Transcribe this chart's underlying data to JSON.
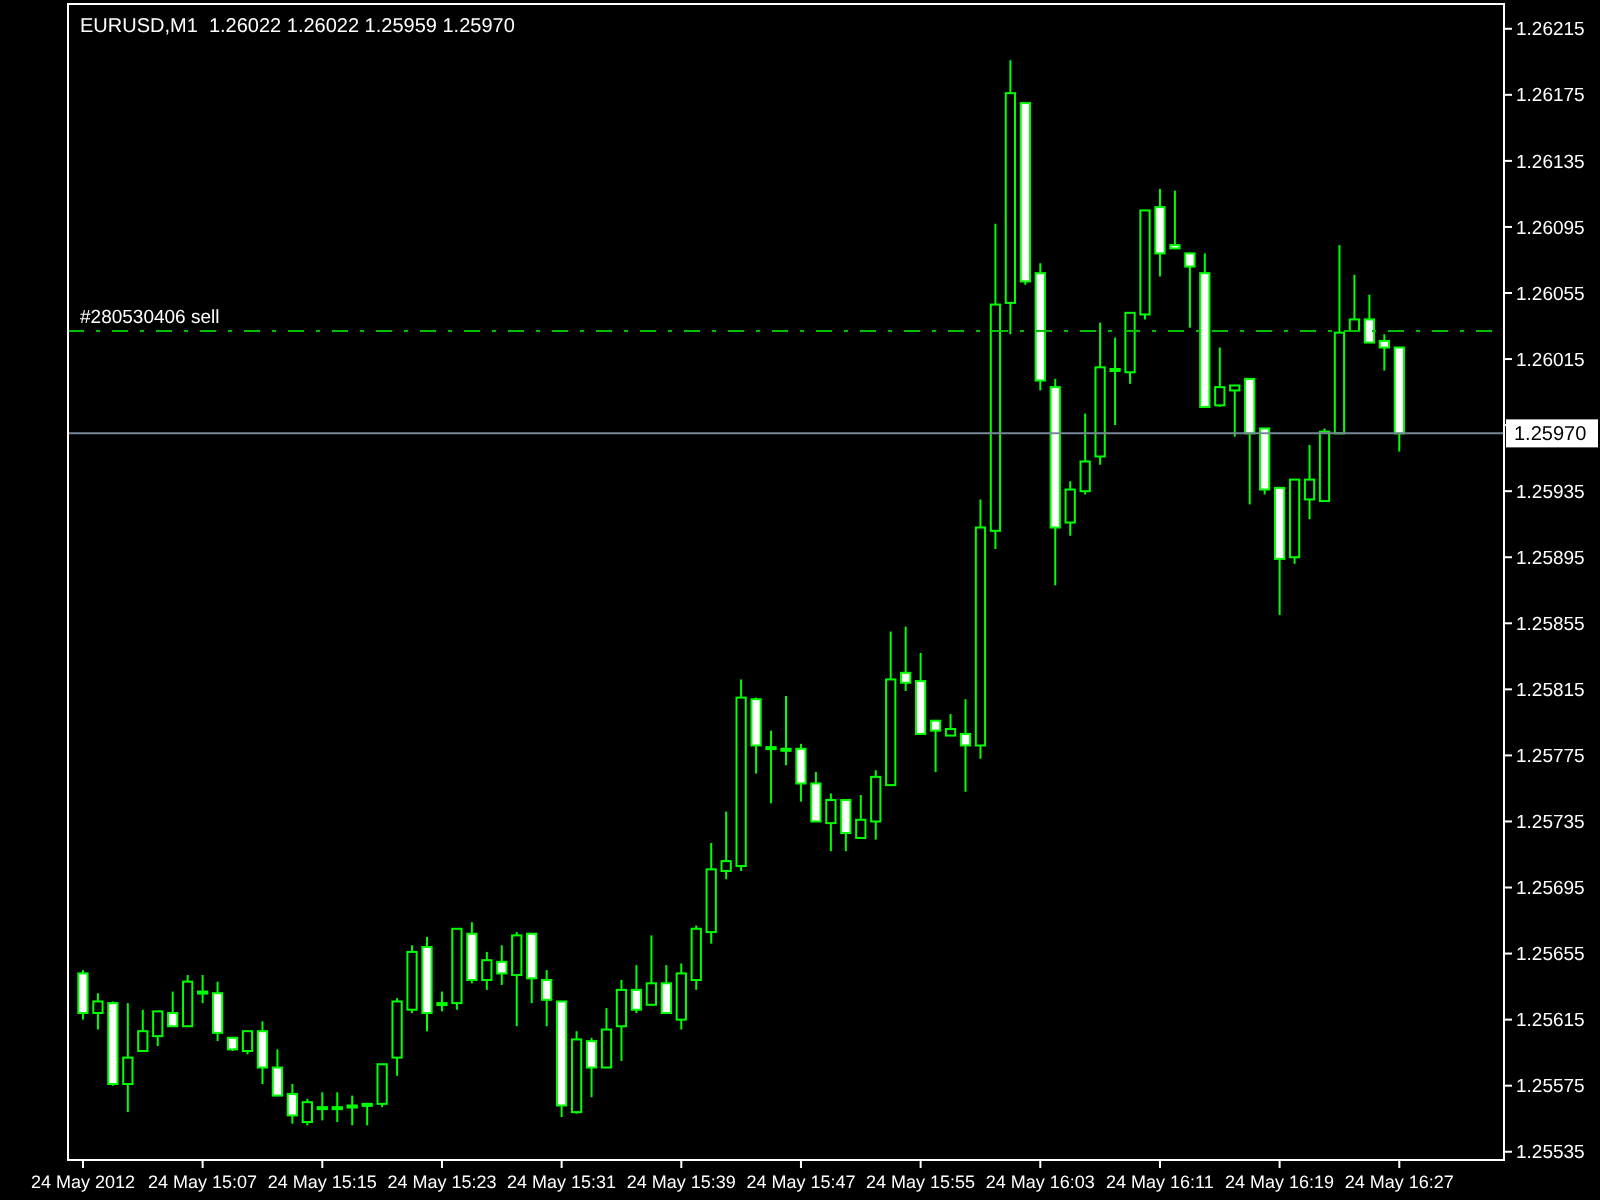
{
  "chart_data": {
    "type": "candlestick",
    "title": "EURUSD,M1  1.26022 1.26022 1.25959 1.25970",
    "color": "#00ff00",
    "x": [
      "2012-05-24T14:59",
      "2012-05-24T15:00",
      "2012-05-24T15:01",
      "2012-05-24T15:02",
      "2012-05-24T15:03",
      "2012-05-24T15:04",
      "2012-05-24T15:05",
      "2012-05-24T15:06",
      "2012-05-24T15:07",
      "2012-05-24T15:08",
      "2012-05-24T15:09",
      "2012-05-24T15:10",
      "2012-05-24T15:11",
      "2012-05-24T15:12",
      "2012-05-24T15:13",
      "2012-05-24T15:14",
      "2012-05-24T15:15",
      "2012-05-24T15:16",
      "2012-05-24T15:17",
      "2012-05-24T15:18",
      "2012-05-24T15:19",
      "2012-05-24T15:20",
      "2012-05-24T15:21",
      "2012-05-24T15:22",
      "2012-05-24T15:23",
      "2012-05-24T15:24",
      "2012-05-24T15:25",
      "2012-05-24T15:26",
      "2012-05-24T15:27",
      "2012-05-24T15:28",
      "2012-05-24T15:29",
      "2012-05-24T15:30",
      "2012-05-24T15:31",
      "2012-05-24T15:32",
      "2012-05-24T15:33",
      "2012-05-24T15:34",
      "2012-05-24T15:35",
      "2012-05-24T15:36",
      "2012-05-24T15:37",
      "2012-05-24T15:38",
      "2012-05-24T15:39",
      "2012-05-24T15:40",
      "2012-05-24T15:41",
      "2012-05-24T15:42",
      "2012-05-24T15:43",
      "2012-05-24T15:44",
      "2012-05-24T15:45",
      "2012-05-24T15:46",
      "2012-05-24T15:47",
      "2012-05-24T15:48",
      "2012-05-24T15:49",
      "2012-05-24T15:50",
      "2012-05-24T15:51",
      "2012-05-24T15:52",
      "2012-05-24T15:53",
      "2012-05-24T15:54",
      "2012-05-24T15:55",
      "2012-05-24T15:56",
      "2012-05-24T15:57",
      "2012-05-24T15:58",
      "2012-05-24T15:59",
      "2012-05-24T16:00",
      "2012-05-24T16:01",
      "2012-05-24T16:02",
      "2012-05-24T16:03",
      "2012-05-24T16:04",
      "2012-05-24T16:05",
      "2012-05-24T16:06",
      "2012-05-24T16:07",
      "2012-05-24T16:08",
      "2012-05-24T16:09",
      "2012-05-24T16:10",
      "2012-05-24T16:11",
      "2012-05-24T16:12",
      "2012-05-24T16:13",
      "2012-05-24T16:14",
      "2012-05-24T16:15",
      "2012-05-24T16:16",
      "2012-05-24T16:17",
      "2012-05-24T16:18",
      "2012-05-24T16:19",
      "2012-05-24T16:20",
      "2012-05-24T16:21",
      "2012-05-24T16:22",
      "2012-05-24T16:23",
      "2012-05-24T16:24",
      "2012-05-24T16:25",
      "2012-05-24T16:26",
      "2012-05-24T16:27"
    ],
    "ohlc": [
      [
        1.25643,
        1.25645,
        1.25615,
        1.25619
      ],
      [
        1.25619,
        1.25631,
        1.25609,
        1.25626
      ],
      [
        1.25625,
        1.25626,
        1.25575,
        1.25576
      ],
      [
        1.25576,
        1.25625,
        1.25559,
        1.25592
      ],
      [
        1.25596,
        1.25621,
        1.25596,
        1.25608
      ],
      [
        1.25605,
        1.2562,
        1.25599,
        1.2562
      ],
      [
        1.25619,
        1.25632,
        1.25611,
        1.25611
      ],
      [
        1.25611,
        1.25642,
        1.25611,
        1.25638
      ],
      [
        1.25632,
        1.25642,
        1.25625,
        1.25632
      ],
      [
        1.25631,
        1.25638,
        1.25602,
        1.25607
      ],
      [
        1.25604,
        1.25604,
        1.25596,
        1.25597
      ],
      [
        1.25596,
        1.25608,
        1.25594,
        1.25608
      ],
      [
        1.25608,
        1.25614,
        1.25576,
        1.25586
      ],
      [
        1.25586,
        1.25597,
        1.25569,
        1.25569
      ],
      [
        1.2557,
        1.25576,
        1.25552,
        1.25557
      ],
      [
        1.25553,
        1.25567,
        1.25551,
        1.25565
      ],
      [
        1.25562,
        1.25571,
        1.25554,
        1.25562
      ],
      [
        1.25562,
        1.25571,
        1.25553,
        1.25562
      ],
      [
        1.25563,
        1.25569,
        1.25551,
        1.25563
      ],
      [
        1.25564,
        1.25564,
        1.25551,
        1.25564
      ],
      [
        1.25564,
        1.25588,
        1.25562,
        1.25588
      ],
      [
        1.25592,
        1.25628,
        1.25581,
        1.25626
      ],
      [
        1.25621,
        1.2566,
        1.25619,
        1.25656
      ],
      [
        1.25659,
        1.25665,
        1.25608,
        1.25619
      ],
      [
        1.25625,
        1.25632,
        1.2562,
        1.25625
      ],
      [
        1.25625,
        1.2567,
        1.25621,
        1.2567
      ],
      [
        1.25667,
        1.25674,
        1.25637,
        1.25639
      ],
      [
        1.25639,
        1.25656,
        1.25633,
        1.25651
      ],
      [
        1.2565,
        1.2566,
        1.25636,
        1.25643
      ],
      [
        1.25642,
        1.25668,
        1.25611,
        1.25666
      ],
      [
        1.25667,
        1.25667,
        1.25625,
        1.2564
      ],
      [
        1.25639,
        1.25645,
        1.25611,
        1.25627
      ],
      [
        1.25626,
        1.25626,
        1.25556,
        1.25563
      ],
      [
        1.25559,
        1.25608,
        1.25558,
        1.25603
      ],
      [
        1.25602,
        1.25604,
        1.25568,
        1.25586
      ],
      [
        1.25586,
        1.25622,
        1.25586,
        1.25609
      ],
      [
        1.25611,
        1.25639,
        1.2559,
        1.25633
      ],
      [
        1.25633,
        1.25648,
        1.25619,
        1.25621
      ],
      [
        1.25624,
        1.25666,
        1.25624,
        1.25637
      ],
      [
        1.25637,
        1.25648,
        1.25619,
        1.25619
      ],
      [
        1.25615,
        1.25649,
        1.25609,
        1.25643
      ],
      [
        1.25639,
        1.25672,
        1.25633,
        1.2567
      ],
      [
        1.25668,
        1.25722,
        1.25661,
        1.25706
      ],
      [
        1.25705,
        1.25741,
        1.257,
        1.25711
      ],
      [
        1.25708,
        1.25821,
        1.25705,
        1.2581
      ],
      [
        1.25809,
        1.2581,
        1.25764,
        1.25781
      ],
      [
        1.2578,
        1.2579,
        1.25746,
        1.2578
      ],
      [
        1.25779,
        1.25811,
        1.25769,
        1.25779
      ],
      [
        1.25779,
        1.25782,
        1.25747,
        1.25758
      ],
      [
        1.25758,
        1.25765,
        1.25735,
        1.25735
      ],
      [
        1.25734,
        1.25752,
        1.25717,
        1.25748
      ],
      [
        1.25748,
        1.25748,
        1.25717,
        1.25728
      ],
      [
        1.25725,
        1.25751,
        1.25725,
        1.25736
      ],
      [
        1.25735,
        1.25766,
        1.25724,
        1.25762
      ],
      [
        1.25757,
        1.2585,
        1.25757,
        1.25821
      ],
      [
        1.25825,
        1.25853,
        1.25814,
        1.25819
      ],
      [
        1.2582,
        1.25837,
        1.25788,
        1.25788
      ],
      [
        1.25796,
        1.25796,
        1.25765,
        1.2579
      ],
      [
        1.25787,
        1.258,
        1.25787,
        1.25791
      ],
      [
        1.25788,
        1.25809,
        1.25753,
        1.25781
      ],
      [
        1.25781,
        1.2593,
        1.25773,
        1.25913
      ],
      [
        1.25911,
        1.26097,
        1.259,
        1.26048
      ],
      [
        1.26049,
        1.26196,
        1.2603,
        1.26176
      ],
      [
        1.2617,
        1.2617,
        1.2606,
        1.26062
      ],
      [
        1.26067,
        1.26073,
        1.25996,
        1.26002
      ],
      [
        1.25998,
        1.26003,
        1.25878,
        1.25913
      ],
      [
        1.25916,
        1.25941,
        1.25908,
        1.25936
      ],
      [
        1.25935,
        1.25982,
        1.25933,
        1.25953
      ],
      [
        1.25956,
        1.26037,
        1.25951,
        1.2601
      ],
      [
        1.26009,
        1.26028,
        1.25975,
        1.26009
      ],
      [
        1.26007,
        1.26043,
        1.26,
        1.26043
      ],
      [
        1.26042,
        1.26105,
        1.26039,
        1.26105
      ],
      [
        1.26107,
        1.26118,
        1.26065,
        1.26079
      ],
      [
        1.26084,
        1.26117,
        1.26082,
        1.26082
      ],
      [
        1.26079,
        1.26079,
        1.26034,
        1.26071
      ],
      [
        1.26067,
        1.26079,
        1.25986,
        1.25986
      ],
      [
        1.25987,
        1.26022,
        1.25986,
        1.25998
      ],
      [
        1.25996,
        1.25999,
        1.25968,
        1.25999
      ],
      [
        1.26003,
        1.26003,
        1.25927,
        1.2597
      ],
      [
        1.25973,
        1.25973,
        1.25933,
        1.25936
      ],
      [
        1.25937,
        1.25937,
        1.2586,
        1.25894
      ],
      [
        1.25895,
        1.25942,
        1.25891,
        1.25942
      ],
      [
        1.2593,
        1.25963,
        1.25918,
        1.25942
      ],
      [
        1.25929,
        1.25973,
        1.25929,
        1.25971
      ],
      [
        1.2597,
        1.26084,
        1.2597,
        1.26031
      ],
      [
        1.26032,
        1.26066,
        1.26032,
        1.26039
      ],
      [
        1.26039,
        1.26054,
        1.26025,
        1.26025
      ],
      [
        1.26026,
        1.2603,
        1.26008,
        1.26022
      ],
      [
        1.26022,
        1.26022,
        1.25959,
        1.2597
      ]
    ],
    "xlim": [
      "2012-05-24T14:58",
      "2012-05-24T16:34"
    ],
    "xticks": [
      {
        "value": "2012-05-24T14:59",
        "label": "24 May 2012"
      },
      {
        "value": "2012-05-24T15:07",
        "label": "24 May 15:07"
      },
      {
        "value": "2012-05-24T15:15",
        "label": "24 May 15:15"
      },
      {
        "value": "2012-05-24T15:23",
        "label": "24 May 15:23"
      },
      {
        "value": "2012-05-24T15:31",
        "label": "24 May 15:31"
      },
      {
        "value": "2012-05-24T15:39",
        "label": "24 May 15:39"
      },
      {
        "value": "2012-05-24T15:47",
        "label": "24 May 15:47"
      },
      {
        "value": "2012-05-24T15:55",
        "label": "24 May 15:55"
      },
      {
        "value": "2012-05-24T16:03",
        "label": "24 May 16:03"
      },
      {
        "value": "2012-05-24T16:11",
        "label": "24 May 16:11"
      },
      {
        "value": "2012-05-24T16:19",
        "label": "24 May 16:19"
      },
      {
        "value": "2012-05-24T16:27",
        "label": "24 May 16:27"
      }
    ],
    "ylim": [
      1.2553,
      1.2623
    ],
    "yticks": [
      1.26215,
      1.26175,
      1.26135,
      1.26095,
      1.26055,
      1.26015,
      {
        "value": 1.25975,
        "label": null
      },
      1.25935,
      1.25895,
      1.25855,
      1.25815,
      1.25775,
      1.25735,
      1.25695,
      1.25655,
      1.25615,
      1.25575,
      1.25535
    ],
    "ref_lines": [
      {
        "axis": "y",
        "value": 1.26032,
        "label": "#280530406 sell",
        "color": "#00c000",
        "line_style": "dashed"
      },
      {
        "axis": "y",
        "value": 1.2597,
        "label": "1.25970",
        "color": "#778899",
        "line_style": "solid"
      }
    ]
  }
}
